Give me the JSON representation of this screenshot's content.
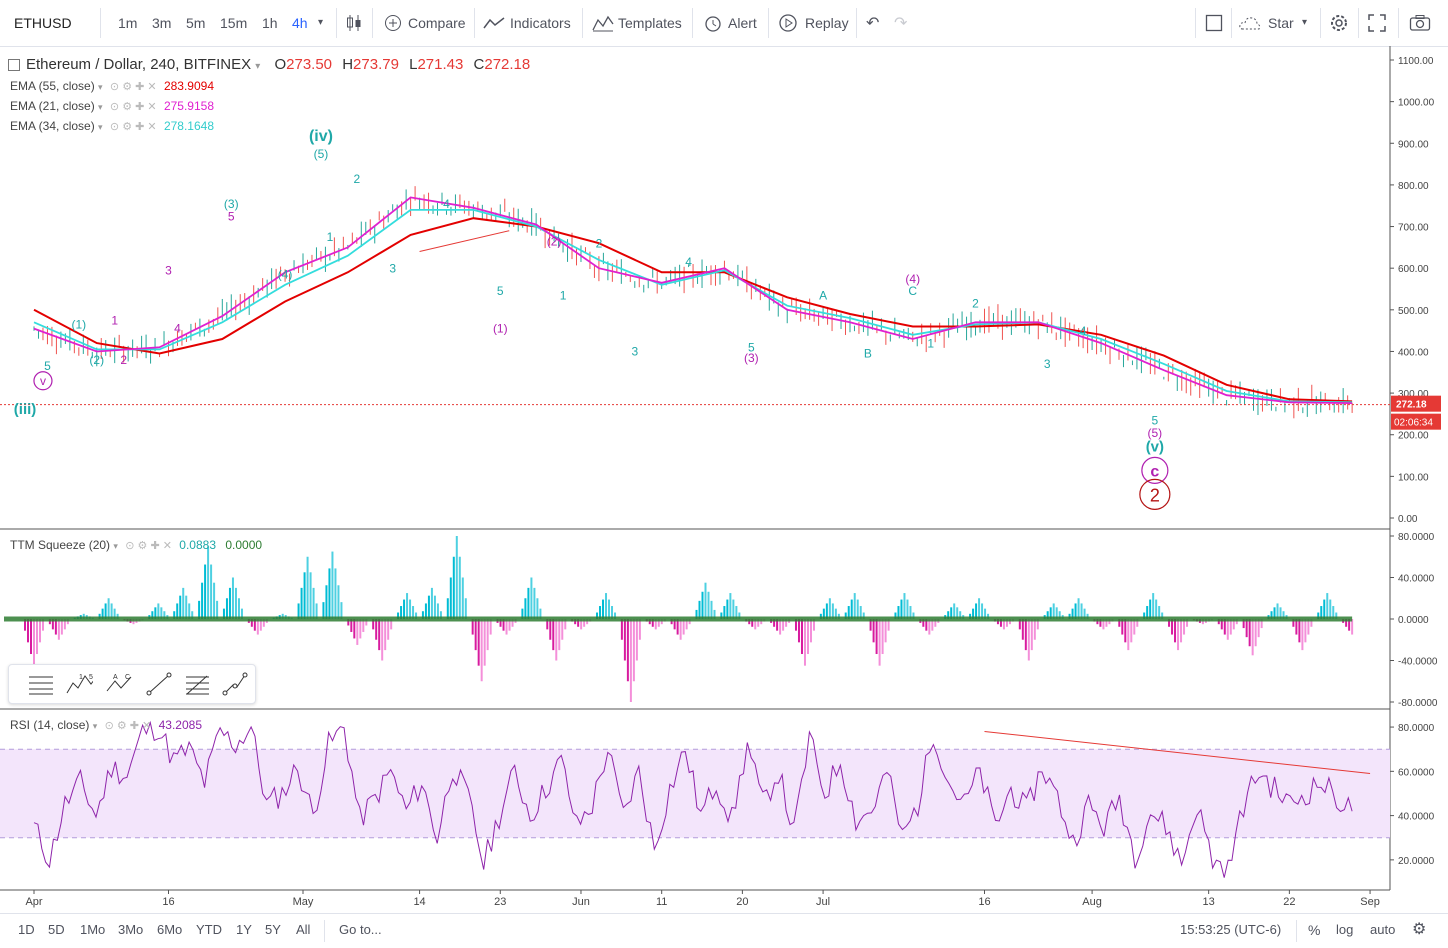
{
  "toolbar": {
    "symbol": "ETHUSD",
    "intervals": [
      "1m",
      "3m",
      "5m",
      "15m",
      "1h",
      "4h"
    ],
    "active_interval": "4h",
    "compare_label": "Compare",
    "indicators_label": "Indicators",
    "templates_label": "Templates",
    "alert_label": "Alert",
    "replay_label": "Replay",
    "star_label": "Star"
  },
  "header": {
    "title": "Ethereum / Dollar, 240, BITFINEX",
    "o_label": "O",
    "o_value": "273.50",
    "h_label": "H",
    "h_value": "273.79",
    "l_label": "L",
    "l_value": "271.43",
    "c_label": "C",
    "c_value": "272.18"
  },
  "legend": {
    "ema55_label": "EMA (55, close)",
    "ema55_value": "283.9094",
    "ema21_label": "EMA (21, close)",
    "ema21_value": "275.9158",
    "ema34_label": "EMA (34, close)",
    "ema34_value": "278.1648",
    "ttm_label": "TTM Squeeze (20)",
    "ttm_value1": "0.0883",
    "ttm_value2": "0.0000",
    "rsi_label": "RSI (14, close)",
    "rsi_value": "43.2085"
  },
  "colors": {
    "ema55": "#e30000",
    "ema21": "#e020d0",
    "ema34": "#33dddd",
    "wave_teal": "#1fa8a8",
    "wave_magenta": "#b020b0",
    "wave_red": "#b41414",
    "price_line": "#e53935",
    "rsi_line": "#8e24aa",
    "rsi_band": "#f3e5fb"
  },
  "chart_data": [
    {
      "type": "line",
      "title": "Ethereum / Dollar, 240, BITFINEX",
      "ylim": [
        0,
        1100
      ],
      "yticks": [
        "1100.00",
        "1000.00",
        "900.00",
        "800.00",
        "700.00",
        "600.00",
        "500.00",
        "400.00",
        "300.00",
        "200.00",
        "100.00",
        "0.00"
      ],
      "yticks_values": [
        1100,
        1000,
        900,
        800,
        700,
        600,
        500,
        400,
        300,
        200,
        100,
        0
      ],
      "last_price": "272.18",
      "last_price_value": 272.18,
      "countdown": "02:06:34",
      "x_days": [
        0,
        7,
        14,
        21,
        28,
        35,
        42,
        49,
        56,
        63,
        70,
        77,
        84,
        91,
        98,
        105,
        112,
        119,
        126,
        133,
        140,
        147
      ],
      "series": [
        {
          "name": "EMA (55, close)",
          "values": [
            500,
            420,
            395,
            430,
            520,
            590,
            680,
            720,
            700,
            660,
            590,
            590,
            530,
            490,
            460,
            460,
            465,
            440,
            390,
            320,
            285,
            280
          ]
        },
        {
          "name": "EMA (34, close)",
          "values": [
            470,
            405,
            405,
            470,
            560,
            630,
            740,
            740,
            700,
            620,
            560,
            595,
            510,
            480,
            440,
            465,
            470,
            430,
            370,
            305,
            280,
            278
          ]
        },
        {
          "name": "EMA (21, close)",
          "values": [
            455,
            400,
            410,
            485,
            590,
            650,
            770,
            745,
            705,
            600,
            565,
            600,
            500,
            470,
            430,
            470,
            470,
            420,
            355,
            295,
            278,
            276
          ]
        }
      ],
      "wave_labels": [
        "(iii)",
        "v",
        "5",
        "(1)",
        "(2)",
        "1",
        "2",
        "3",
        "4",
        "(3)",
        "5",
        "(4)",
        "(iv)",
        "(5)",
        "1",
        "2",
        "3",
        "4",
        "5",
        "(1)",
        "(2)",
        "2",
        "1",
        "3",
        "4",
        "(3)",
        "5",
        "A",
        "B",
        "C",
        "(4)",
        "1",
        "2",
        "3",
        "4",
        "5",
        "(5)",
        "(v)",
        "c",
        "2"
      ]
    },
    {
      "type": "bar",
      "title": "TTM Squeeze (20)",
      "ylim": [
        -80,
        80
      ],
      "yticks": [
        "80.0000",
        "40.0000",
        "0.0000",
        "-40.0000",
        "-80.0000"
      ],
      "yticks_values": [
        80,
        40,
        0,
        -40,
        -80
      ],
      "values": [
        -45,
        -20,
        5,
        20,
        -5,
        15,
        30,
        70,
        40,
        -15,
        5,
        60,
        65,
        -25,
        -40,
        25,
        30,
        80,
        -60,
        -15,
        40,
        -40,
        -10,
        25,
        -80,
        -10,
        -20,
        35,
        25,
        -10,
        -15,
        -45,
        20,
        25,
        -45,
        25,
        -15,
        15,
        20,
        -10,
        -40,
        15,
        20,
        -10,
        -30,
        25,
        -30,
        -5,
        -20,
        -35,
        15,
        -30,
        25,
        -15
      ]
    },
    {
      "type": "line",
      "title": "RSI (14, close)",
      "ylim": [
        10,
        85
      ],
      "yticks": [
        "80.0000",
        "60.0000",
        "40.0000",
        "20.0000"
      ],
      "yticks_values": [
        80,
        60,
        40,
        20
      ],
      "band": [
        30,
        70
      ],
      "values": [
        35,
        20,
        45,
        55,
        40,
        62,
        58,
        78,
        80,
        65,
        70,
        55,
        78,
        72,
        80,
        45,
        50,
        62,
        40,
        72,
        80,
        38,
        48,
        60,
        42,
        55,
        30,
        62,
        48,
        18,
        40,
        60,
        40,
        52,
        65,
        35,
        45,
        70,
        40,
        60,
        25,
        52,
        70,
        40,
        55,
        38,
        72,
        45,
        60,
        32,
        75,
        50,
        65,
        38,
        42,
        60,
        30,
        45,
        78,
        55,
        45,
        60,
        35,
        52,
        42,
        62,
        48,
        28,
        45,
        35,
        48,
        22,
        42,
        35,
        18,
        45,
        20,
        15,
        45,
        60,
        52,
        45,
        50,
        55,
        48,
        42
      ],
      "trendline": [
        [
          78,
          78
        ],
        [
          108,
          59
        ]
      ]
    }
  ],
  "xaxis": {
    "labels": [
      "Apr",
      "16",
      "May",
      "14",
      "23",
      "Jun",
      "11",
      "20",
      "Jul",
      "16",
      "Aug",
      "13",
      "22",
      "Sep"
    ],
    "days": [
      0,
      15,
      30,
      43,
      52,
      61,
      70,
      79,
      88,
      106,
      118,
      131,
      140,
      149
    ]
  },
  "bottombar": {
    "ranges": [
      "1D",
      "5D",
      "1Mo",
      "3Mo",
      "6Mo",
      "YTD",
      "1Y",
      "5Y",
      "All"
    ],
    "goto_label": "Go to...",
    "time": "15:53:25 (UTC-6)",
    "pct_label": "%",
    "log_label": "log",
    "auto_label": "auto"
  }
}
